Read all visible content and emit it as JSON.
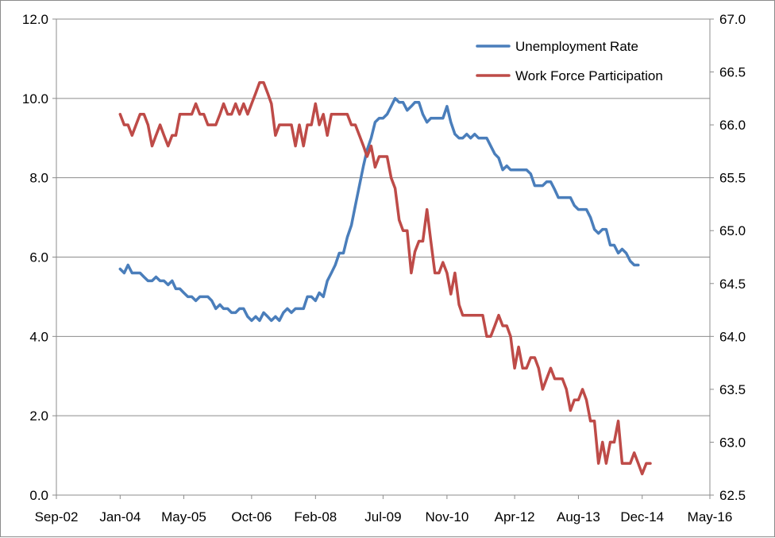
{
  "chart_data": {
    "type": "line",
    "title": "",
    "xlabel": "",
    "ylabel": "",
    "x_axis": {
      "tick_labels": [
        "Sep-02",
        "Jan-04",
        "May-05",
        "Oct-06",
        "Feb-08",
        "Jul-09",
        "Nov-10",
        "Apr-12",
        "Aug-13",
        "Dec-14",
        "May-16"
      ],
      "tick_dates": [
        "2002-09-01",
        "2004-01-01",
        "2005-05-01",
        "2006-10-01",
        "2008-02-01",
        "2009-07-01",
        "2010-11-01",
        "2012-04-01",
        "2013-08-01",
        "2014-12-01",
        "2016-05-01"
      ],
      "range": [
        "2002-09-01",
        "2016-05-01"
      ]
    },
    "y_axis_left": {
      "ylim": [
        0,
        12
      ],
      "ticks": [
        "0.0",
        "2.0",
        "4.0",
        "6.0",
        "8.0",
        "10.0",
        "12.0"
      ]
    },
    "y_axis_right": {
      "ylim": [
        62.5,
        67.0
      ],
      "ticks": [
        "62.5",
        "63.0",
        "63.5",
        "64.0",
        "64.5",
        "65.0",
        "65.5",
        "66.0",
        "66.5",
        "67.0"
      ]
    },
    "grid": "horizontal",
    "legend": {
      "position": "top-right"
    },
    "series": [
      {
        "name": "Unemployment Rate",
        "axis": "left",
        "color": "#4a7ebb",
        "start": "2004-01",
        "frequency": "monthly",
        "values": [
          5.7,
          5.6,
          5.8,
          5.6,
          5.6,
          5.6,
          5.5,
          5.4,
          5.4,
          5.5,
          5.4,
          5.4,
          5.3,
          5.4,
          5.2,
          5.2,
          5.1,
          5.0,
          5.0,
          4.9,
          5.0,
          5.0,
          5.0,
          4.9,
          4.7,
          4.8,
          4.7,
          4.7,
          4.6,
          4.6,
          4.7,
          4.7,
          4.5,
          4.4,
          4.5,
          4.4,
          4.6,
          4.5,
          4.4,
          4.5,
          4.4,
          4.6,
          4.7,
          4.6,
          4.7,
          4.7,
          4.7,
          5.0,
          5.0,
          4.9,
          5.1,
          5.0,
          5.4,
          5.6,
          5.8,
          6.1,
          6.1,
          6.5,
          6.8,
          7.3,
          7.8,
          8.3,
          8.7,
          9.0,
          9.4,
          9.5,
          9.5,
          9.6,
          9.8,
          10.0,
          9.9,
          9.9,
          9.7,
          9.8,
          9.9,
          9.9,
          9.6,
          9.4,
          9.5,
          9.5,
          9.5,
          9.5,
          9.8,
          9.4,
          9.1,
          9.0,
          9.0,
          9.1,
          9.0,
          9.1,
          9.0,
          9.0,
          9.0,
          8.8,
          8.6,
          8.5,
          8.2,
          8.3,
          8.2,
          8.2,
          8.2,
          8.2,
          8.2,
          8.1,
          7.8,
          7.8,
          7.8,
          7.9,
          7.9,
          7.7,
          7.5,
          7.5,
          7.5,
          7.5,
          7.3,
          7.2,
          7.2,
          7.2,
          7.0,
          6.7,
          6.6,
          6.7,
          6.7,
          6.3,
          6.3,
          6.1,
          6.2,
          6.1,
          5.9,
          5.8,
          5.8
        ]
      },
      {
        "name": "Work Force Participation",
        "axis": "right",
        "color": "#be4b48",
        "start": "2004-01",
        "frequency": "monthly",
        "values": [
          66.1,
          66.0,
          66.0,
          65.9,
          66.0,
          66.1,
          66.1,
          66.0,
          65.8,
          65.9,
          66.0,
          65.9,
          65.8,
          65.9,
          65.9,
          66.1,
          66.1,
          66.1,
          66.1,
          66.2,
          66.1,
          66.1,
          66.0,
          66.0,
          66.0,
          66.1,
          66.2,
          66.1,
          66.1,
          66.2,
          66.1,
          66.2,
          66.1,
          66.2,
          66.3,
          66.4,
          66.4,
          66.3,
          66.2,
          65.9,
          66.0,
          66.0,
          66.0,
          66.0,
          65.8,
          66.0,
          65.8,
          66.0,
          66.0,
          66.2,
          66.0,
          66.1,
          65.9,
          66.1,
          66.1,
          66.1,
          66.1,
          66.1,
          66.0,
          66.0,
          65.9,
          65.8,
          65.7,
          65.8,
          65.6,
          65.7,
          65.7,
          65.7,
          65.5,
          65.4,
          65.1,
          65.0,
          65.0,
          64.6,
          64.8,
          64.9,
          64.9,
          65.2,
          64.9,
          64.6,
          64.6,
          64.7,
          64.6,
          64.4,
          64.6,
          64.3,
          64.2,
          64.2,
          64.2,
          64.2,
          64.2,
          64.2,
          64.0,
          64.0,
          64.1,
          64.2,
          64.1,
          64.1,
          64.0,
          63.7,
          63.9,
          63.7,
          63.7,
          63.8,
          63.8,
          63.7,
          63.5,
          63.6,
          63.7,
          63.6,
          63.6,
          63.6,
          63.5,
          63.3,
          63.4,
          63.4,
          63.5,
          63.4,
          63.2,
          63.2,
          62.8,
          63.0,
          62.8,
          63.0,
          63.0,
          63.2,
          62.8,
          62.8,
          62.8,
          62.9,
          62.8,
          62.7,
          62.8,
          62.8
        ]
      }
    ]
  }
}
